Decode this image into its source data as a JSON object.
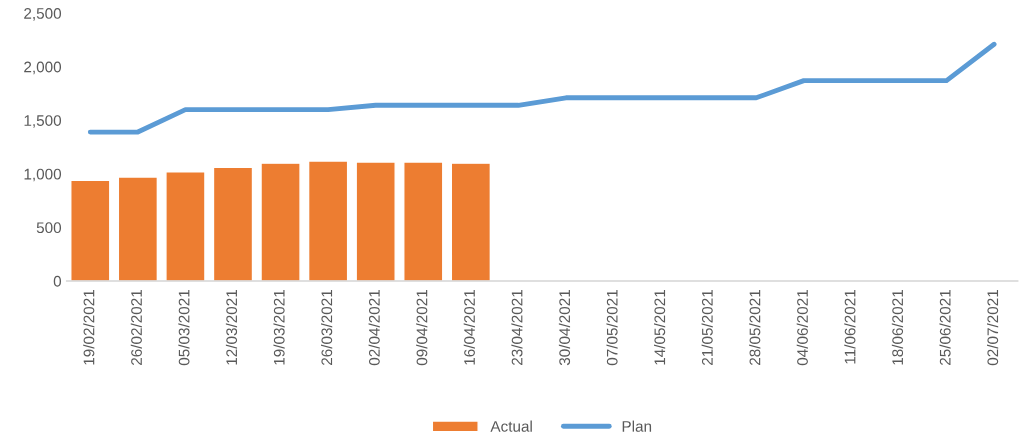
{
  "chart_data": {
    "type": "bar",
    "categories": [
      "19/02/2021",
      "26/02/2021",
      "05/03/2021",
      "12/03/2021",
      "19/03/2021",
      "26/03/2021",
      "02/04/2021",
      "09/04/2021",
      "16/04/2021",
      "23/04/2021",
      "30/04/2021",
      "07/05/2021",
      "14/05/2021",
      "21/05/2021",
      "28/05/2021",
      "04/06/2021",
      "11/06/2021",
      "18/06/2021",
      "25/06/2021",
      "02/07/2021"
    ],
    "series": [
      {
        "name": "Actual",
        "color": "#ed7d31",
        "values": [
          940,
          970,
          1020,
          1060,
          1100,
          1120,
          1110,
          1110,
          1100,
          null,
          null,
          null,
          null,
          null,
          null,
          null,
          null,
          null,
          null,
          null
        ]
      },
      {
        "name": "Plan",
        "type": "line",
        "color": "#5b9bd5",
        "values": [
          1390,
          1390,
          1600,
          1600,
          1600,
          1600,
          1640,
          1640,
          1640,
          1640,
          1710,
          1710,
          1710,
          1710,
          1710,
          1870,
          1870,
          1870,
          1870,
          2210
        ]
      }
    ],
    "ylim": [
      0,
      2500
    ],
    "yticks": [
      {
        "value": 0,
        "label": "0"
      },
      {
        "value": 500,
        "label": "500"
      },
      {
        "value": 1000,
        "label": "1,000"
      },
      {
        "value": 1500,
        "label": "1,500"
      },
      {
        "value": 2000,
        "label": "2,000"
      },
      {
        "value": 2500,
        "label": "2,500"
      }
    ],
    "grid": false,
    "legend": "bottom"
  }
}
